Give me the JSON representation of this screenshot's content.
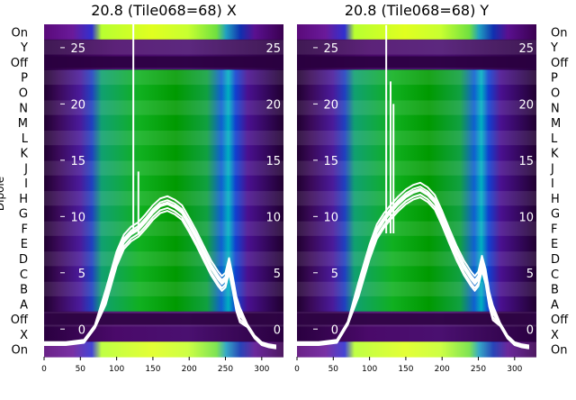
{
  "ylabel_left": "Dipole",
  "row_labels": [
    "On",
    "Y",
    "Off",
    "P",
    "O",
    "N",
    "M",
    "L",
    "K",
    "J",
    "I",
    "H",
    "G",
    "F",
    "E",
    "D",
    "C",
    "B",
    "A",
    "Off",
    "X",
    "On"
  ],
  "chart_data": [
    {
      "type": "heatmap",
      "title": "20.8 (Tile068=68) X",
      "xticks": [
        0,
        50,
        100,
        150,
        200,
        250,
        300
      ],
      "xlim": [
        0,
        330
      ],
      "inner_yticks": [
        25,
        20,
        15,
        10,
        5,
        0
      ],
      "inner_ylim": [
        -1.5,
        27
      ],
      "line_color": "#ffffff",
      "curve": {
        "x": [
          0,
          30,
          55,
          70,
          85,
          100,
          110,
          120,
          130,
          140,
          150,
          160,
          170,
          180,
          190,
          200,
          210,
          220,
          230,
          240,
          245,
          250,
          255,
          260,
          265,
          270,
          280,
          290,
          300,
          310,
          320
        ],
        "y": [
          -1.3,
          -1.3,
          -1.1,
          0.2,
          2.8,
          6.2,
          7.7,
          8.4,
          8.8,
          9.5,
          10.3,
          10.9,
          11.1,
          10.8,
          10.3,
          9.2,
          8.0,
          6.7,
          5.4,
          4.4,
          4.0,
          4.3,
          5.6,
          4.0,
          2.2,
          1.2,
          0.3,
          -0.7,
          -1.3,
          -1.5,
          -1.6
        ]
      },
      "spikes": [
        {
          "x": 123,
          "y": 28
        },
        {
          "x": 130,
          "y": 14
        }
      ]
    },
    {
      "type": "heatmap",
      "title": "20.8 (Tile068=68) Y",
      "xticks": [
        0,
        50,
        100,
        150,
        200,
        250,
        300
      ],
      "xlim": [
        0,
        330
      ],
      "inner_yticks": [
        25,
        20,
        15,
        10,
        5,
        0
      ],
      "inner_ylim": [
        -1.5,
        27
      ],
      "line_color": "#ffffff",
      "curve": {
        "x": [
          0,
          30,
          55,
          70,
          85,
          100,
          110,
          120,
          130,
          140,
          150,
          160,
          170,
          180,
          190,
          200,
          210,
          220,
          230,
          240,
          245,
          250,
          255,
          260,
          265,
          270,
          280,
          290,
          300,
          310,
          320
        ],
        "y": [
          -1.3,
          -1.3,
          -1.1,
          0.5,
          3.5,
          6.8,
          8.6,
          9.6,
          10.4,
          11.1,
          11.7,
          12.1,
          12.3,
          11.9,
          11.2,
          9.8,
          8.2,
          6.7,
          5.4,
          4.4,
          4.0,
          4.4,
          5.8,
          4.6,
          2.6,
          1.4,
          0.4,
          -0.7,
          -1.3,
          -1.5,
          -1.6
        ]
      },
      "spikes": [
        {
          "x": 123,
          "y": 27
        },
        {
          "x": 129,
          "y": 22
        },
        {
          "x": 133,
          "y": 20
        }
      ]
    }
  ]
}
